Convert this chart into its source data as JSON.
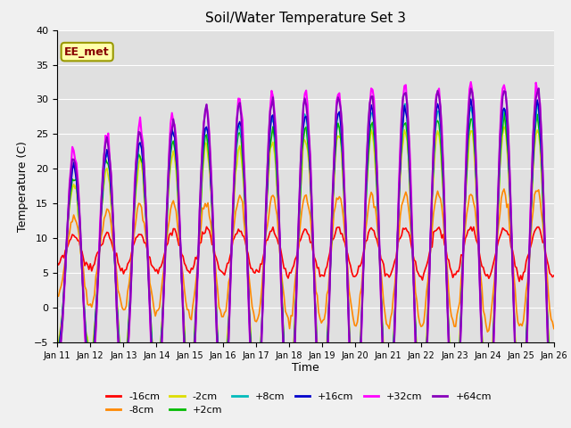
{
  "title": "Soil/Water Temperature Set 3",
  "xlabel": "Time",
  "ylabel": "Temperature (C)",
  "ylim": [
    -5,
    40
  ],
  "xlim": [
    0,
    15
  ],
  "annotation": "EE_met",
  "fig_facecolor": "#f0f0f0",
  "plot_facecolor": "#e0e0e0",
  "x_tick_labels": [
    "Jan 11",
    "Jan 12",
    "Jan 13",
    "Jan 14",
    "Jan 15",
    "Jan 16",
    "Jan 17",
    "Jan 18",
    "Jan 19",
    "Jan 20",
    "Jan 21",
    "Jan 22",
    "Jan 23",
    "Jan 24",
    "Jan 25",
    "Jan 26"
  ],
  "yticks": [
    -5,
    0,
    5,
    10,
    15,
    20,
    25,
    30,
    35,
    40
  ],
  "series": [
    {
      "label": "-16cm",
      "color": "#ff0000",
      "lw": 1.2
    },
    {
      "label": "-8cm",
      "color": "#ff8800",
      "lw": 1.2
    },
    {
      "label": "-2cm",
      "color": "#dddd00",
      "lw": 1.2
    },
    {
      "label": "+2cm",
      "color": "#00bb00",
      "lw": 1.2
    },
    {
      "label": "+8cm",
      "color": "#00bbbb",
      "lw": 1.2
    },
    {
      "label": "+16cm",
      "color": "#0000cc",
      "lw": 1.2
    },
    {
      "label": "+32cm",
      "color": "#ff00ff",
      "lw": 1.5
    },
    {
      "label": "+64cm",
      "color": "#8800bb",
      "lw": 1.5
    }
  ]
}
